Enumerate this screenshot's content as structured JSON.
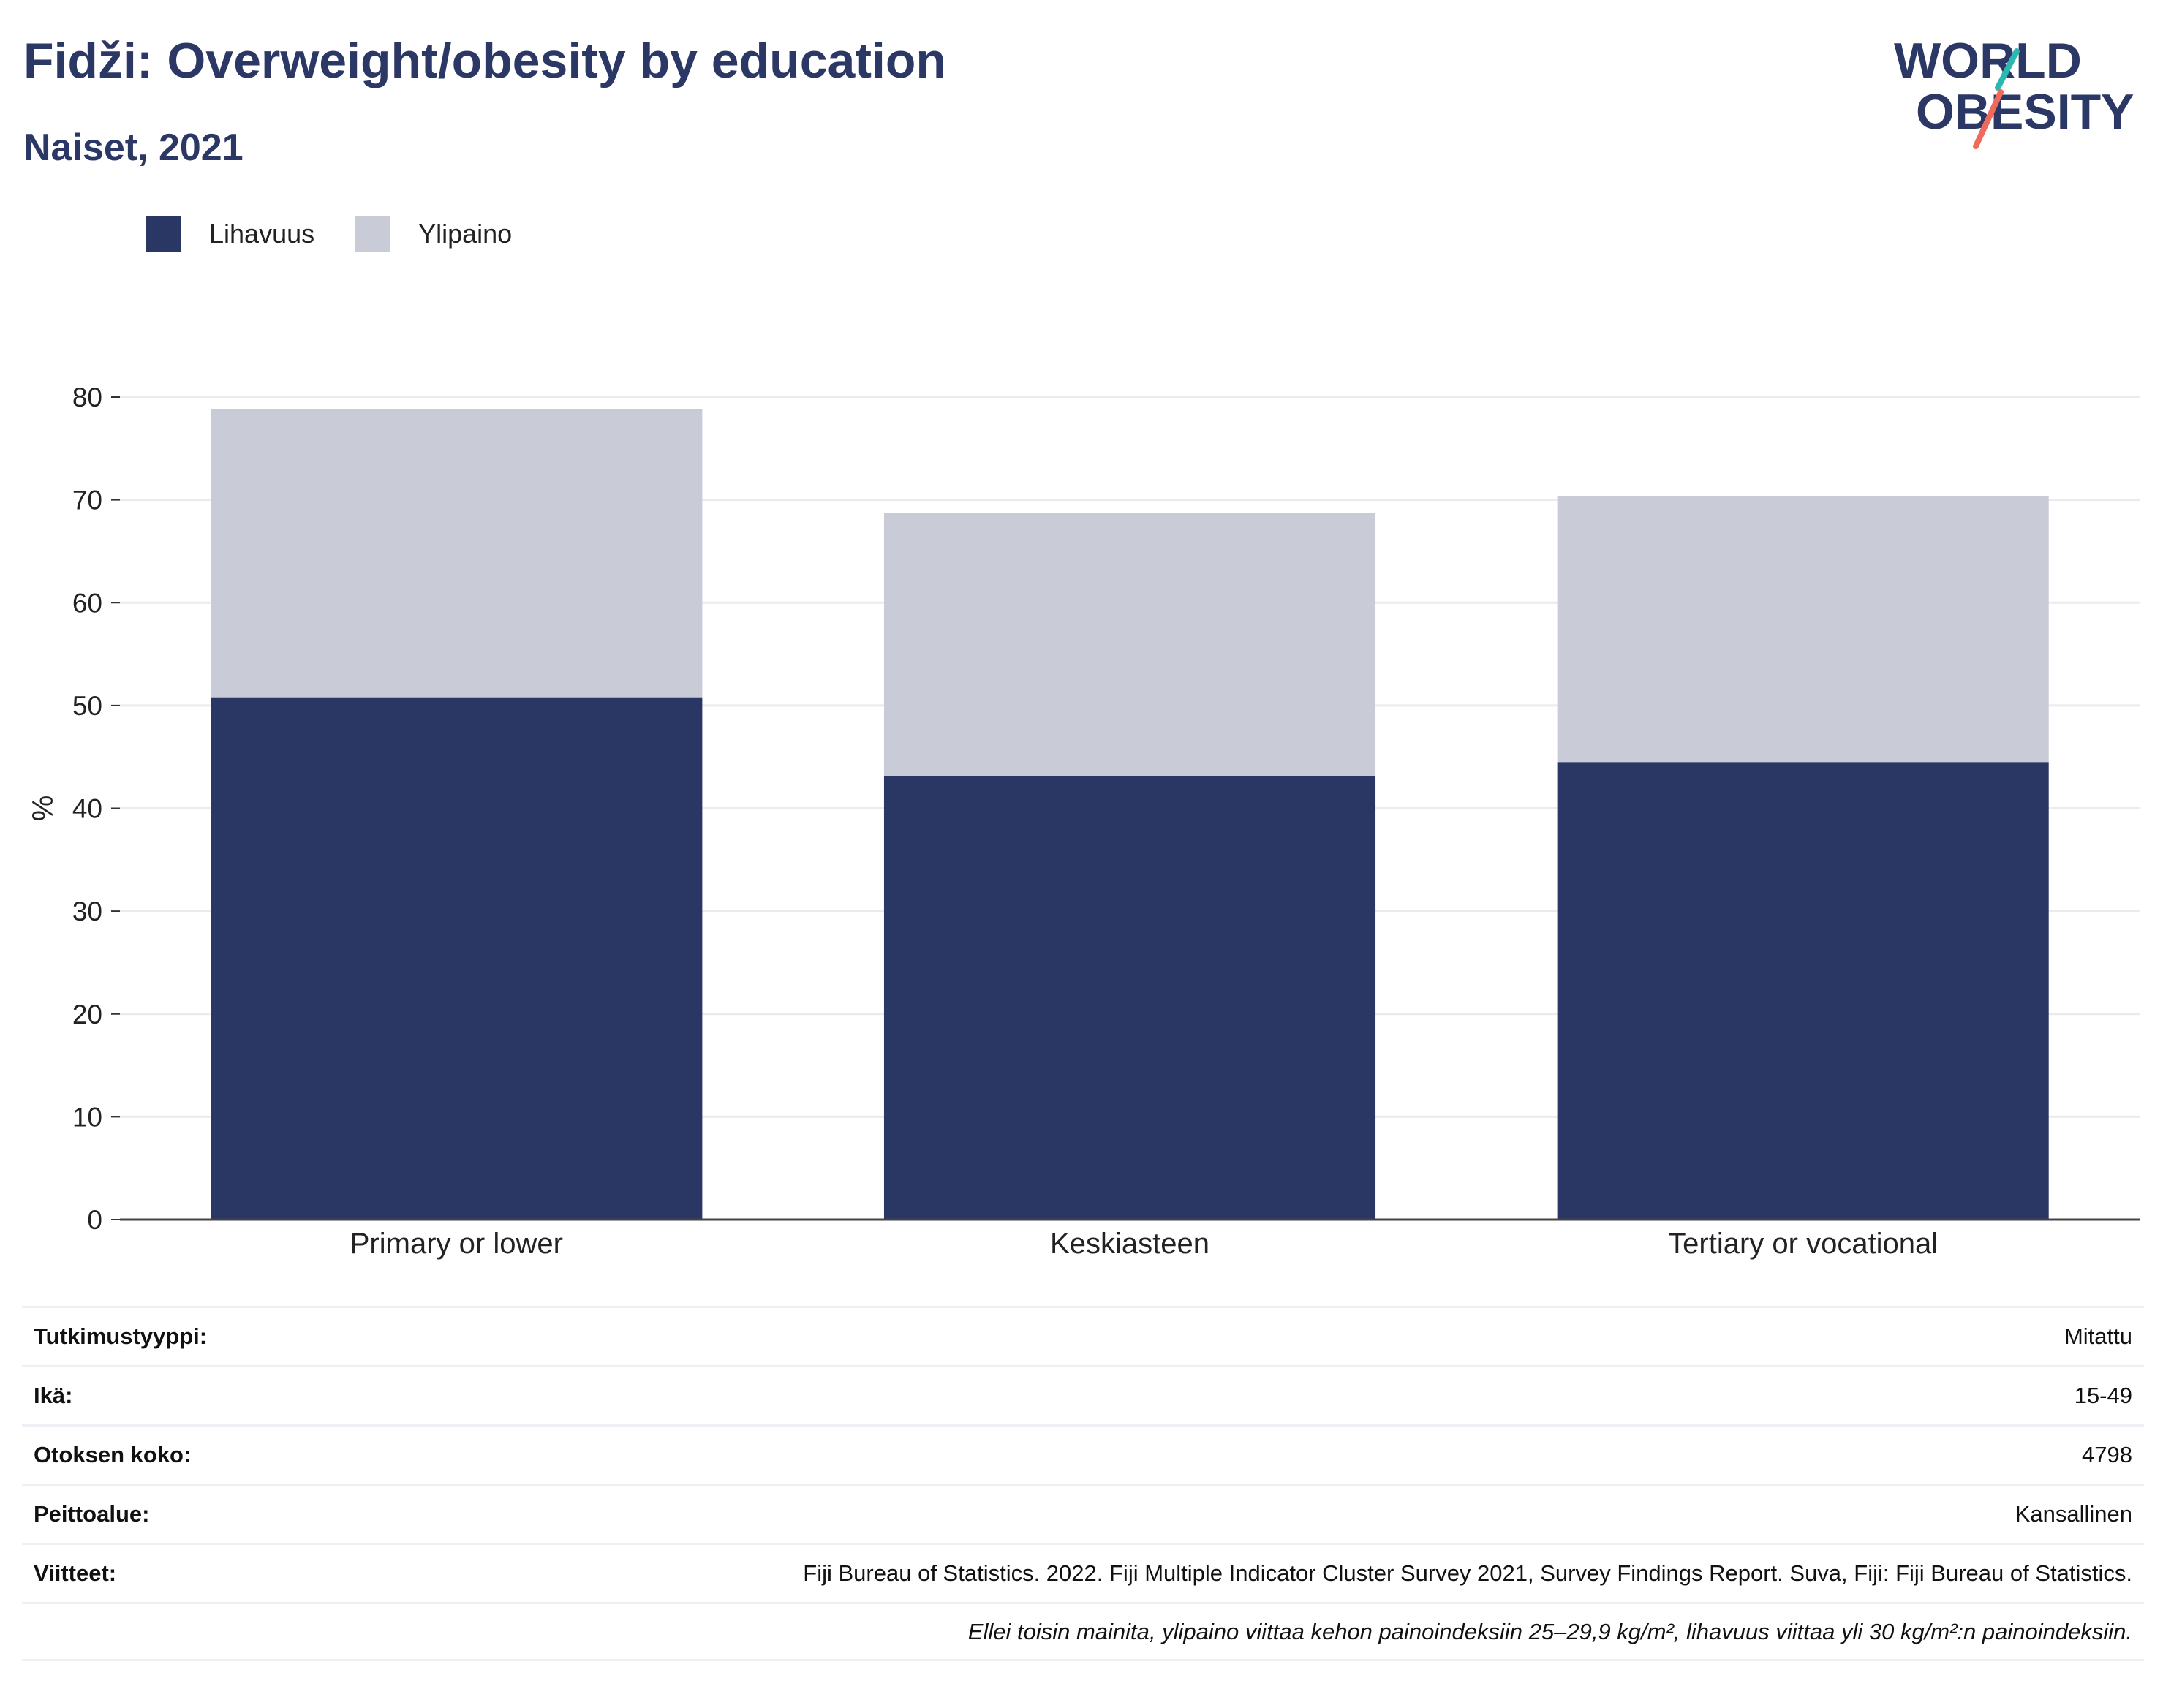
{
  "header": {
    "title": "Fidži: Overweight/obesity by education",
    "subtitle": "Naiset, 2021"
  },
  "logo": {
    "line1": "WORLD",
    "line2": "OBESITY"
  },
  "colors": {
    "obesity": "#2a3663",
    "overweight": "#c9cbd7",
    "title": "#2b3764",
    "accent_teal": "#2bb8b0",
    "accent_coral": "#ee6a5b"
  },
  "chart_data": {
    "type": "bar",
    "stacked": true,
    "categories": [
      "Primary or lower",
      "Keskiasteen",
      "Tertiary or vocational"
    ],
    "series": [
      {
        "name": "Lihavuus",
        "values": [
          50.8,
          43.1,
          44.5
        ]
      },
      {
        "name": "Ylipaino",
        "values": [
          28.0,
          25.6,
          25.9
        ]
      }
    ],
    "ylabel": "%",
    "ylim": [
      0,
      80
    ],
    "yticks": [
      0,
      10,
      20,
      30,
      40,
      50,
      60,
      70,
      80
    ],
    "grid": true,
    "legend_position": "top-left"
  },
  "meta": {
    "rows": [
      {
        "key": "Tutkimustyyppi:",
        "value": "Mitattu"
      },
      {
        "key": "Ikä:",
        "value": "15-49"
      },
      {
        "key": "Otoksen koko:",
        "value": "4798"
      },
      {
        "key": "Peittoalue:",
        "value": "Kansallinen"
      },
      {
        "key": "Viitteet:",
        "value": "Fiji Bureau of Statistics. 2022. Fiji Multiple Indicator Cluster Survey 2021, Survey Findings Report. Suva, Fiji: Fiji Bureau of Statistics."
      }
    ],
    "note": "Ellei toisin mainita, ylipaino viittaa kehon painoindeksiin 25–29,9 kg/m², lihavuus viittaa yli 30 kg/m²:n painoindeksiin."
  }
}
